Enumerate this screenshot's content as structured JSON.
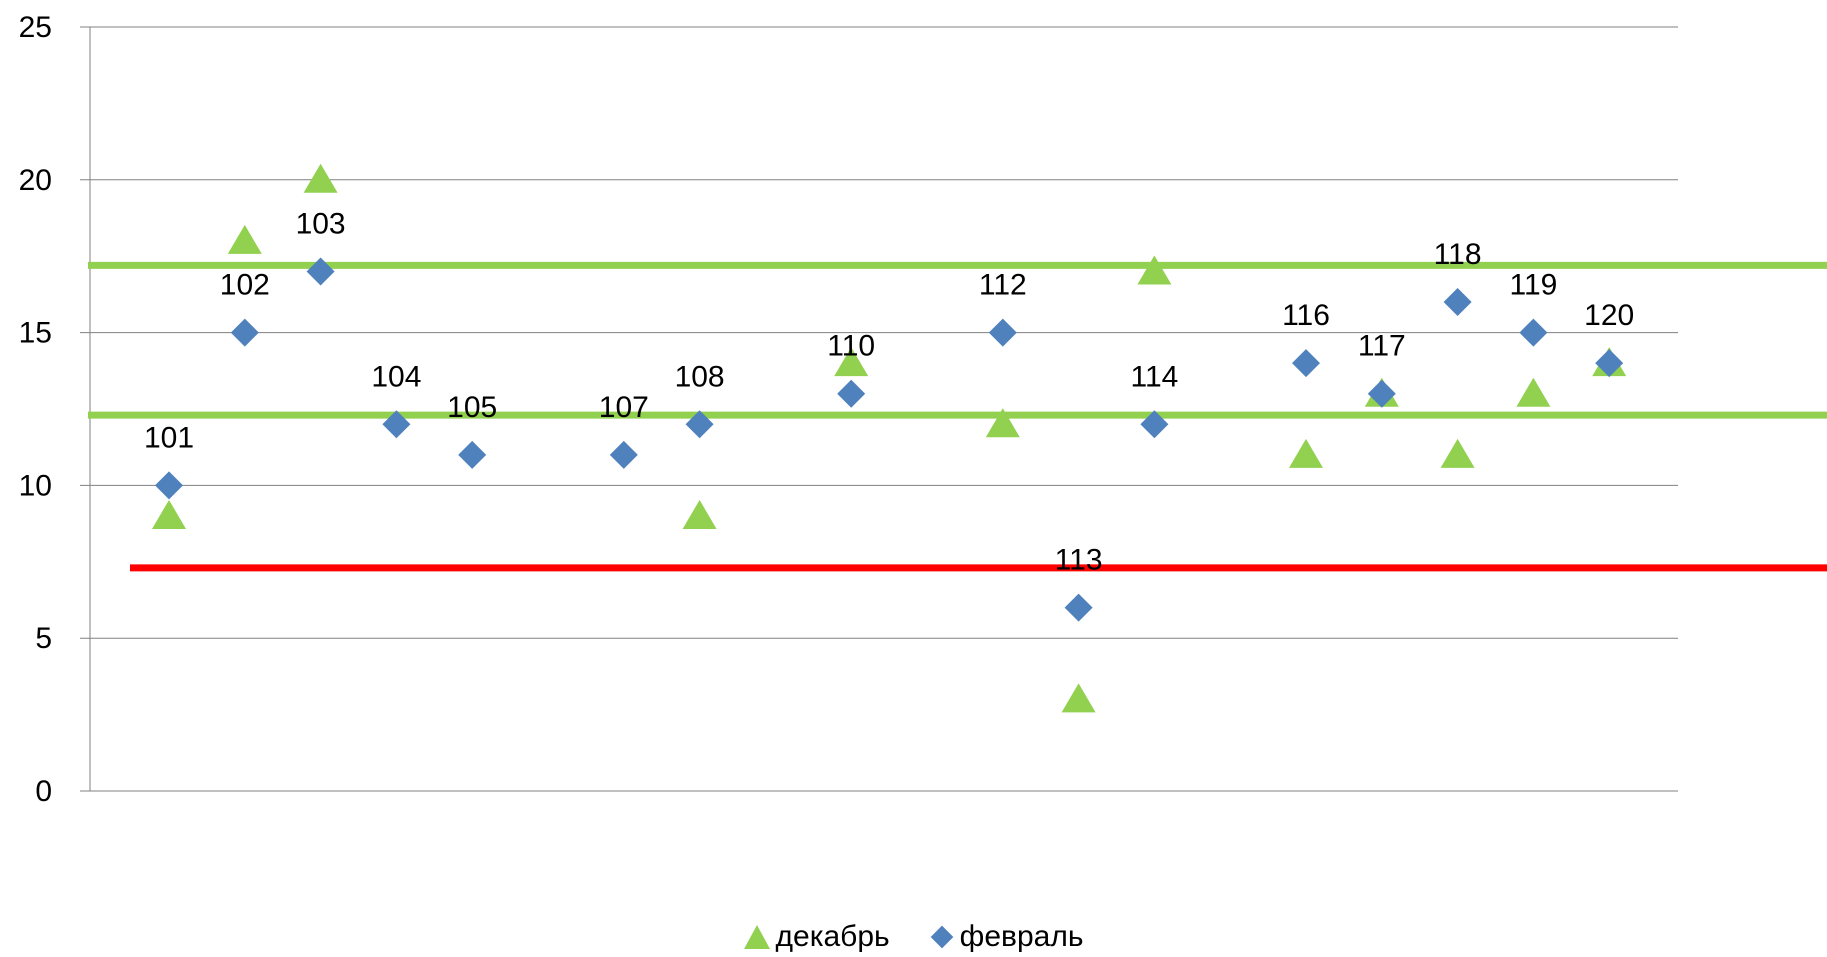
{
  "chart_data": {
    "type": "scatter",
    "ylim": [
      0,
      25
    ],
    "yticks": [
      "0",
      "5",
      "10",
      "15",
      "20",
      "25"
    ],
    "grid": true,
    "legend_position": "bottom",
    "x": [
      1,
      2,
      3,
      4,
      5,
      7,
      8,
      10,
      12,
      13,
      14,
      16,
      17,
      18,
      19,
      20
    ],
    "point_labels": [
      "101",
      "102",
      "103",
      "104",
      "105",
      "107",
      "108",
      "110",
      "112",
      "113",
      "114",
      "116",
      "117",
      "118",
      "119",
      "120"
    ],
    "series": [
      {
        "name": "декабрь",
        "marker": "triangle",
        "color": "#92D050",
        "values": [
          9,
          18,
          20,
          null,
          null,
          null,
          9,
          14,
          12,
          3,
          17,
          11,
          13,
          11,
          13,
          14
        ]
      },
      {
        "name": "февраль",
        "marker": "diamond",
        "color": "#4F81BD",
        "values": [
          10,
          15,
          17,
          12,
          11,
          11,
          12,
          13,
          15,
          6,
          12,
          14,
          13,
          16,
          15,
          14
        ]
      }
    ],
    "reference_lines": [
      {
        "y": 17.2,
        "color": "#92D050"
      },
      {
        "y": 12.3,
        "color": "#92D050"
      },
      {
        "y": 7.3,
        "color": "#FF0000"
      }
    ]
  }
}
